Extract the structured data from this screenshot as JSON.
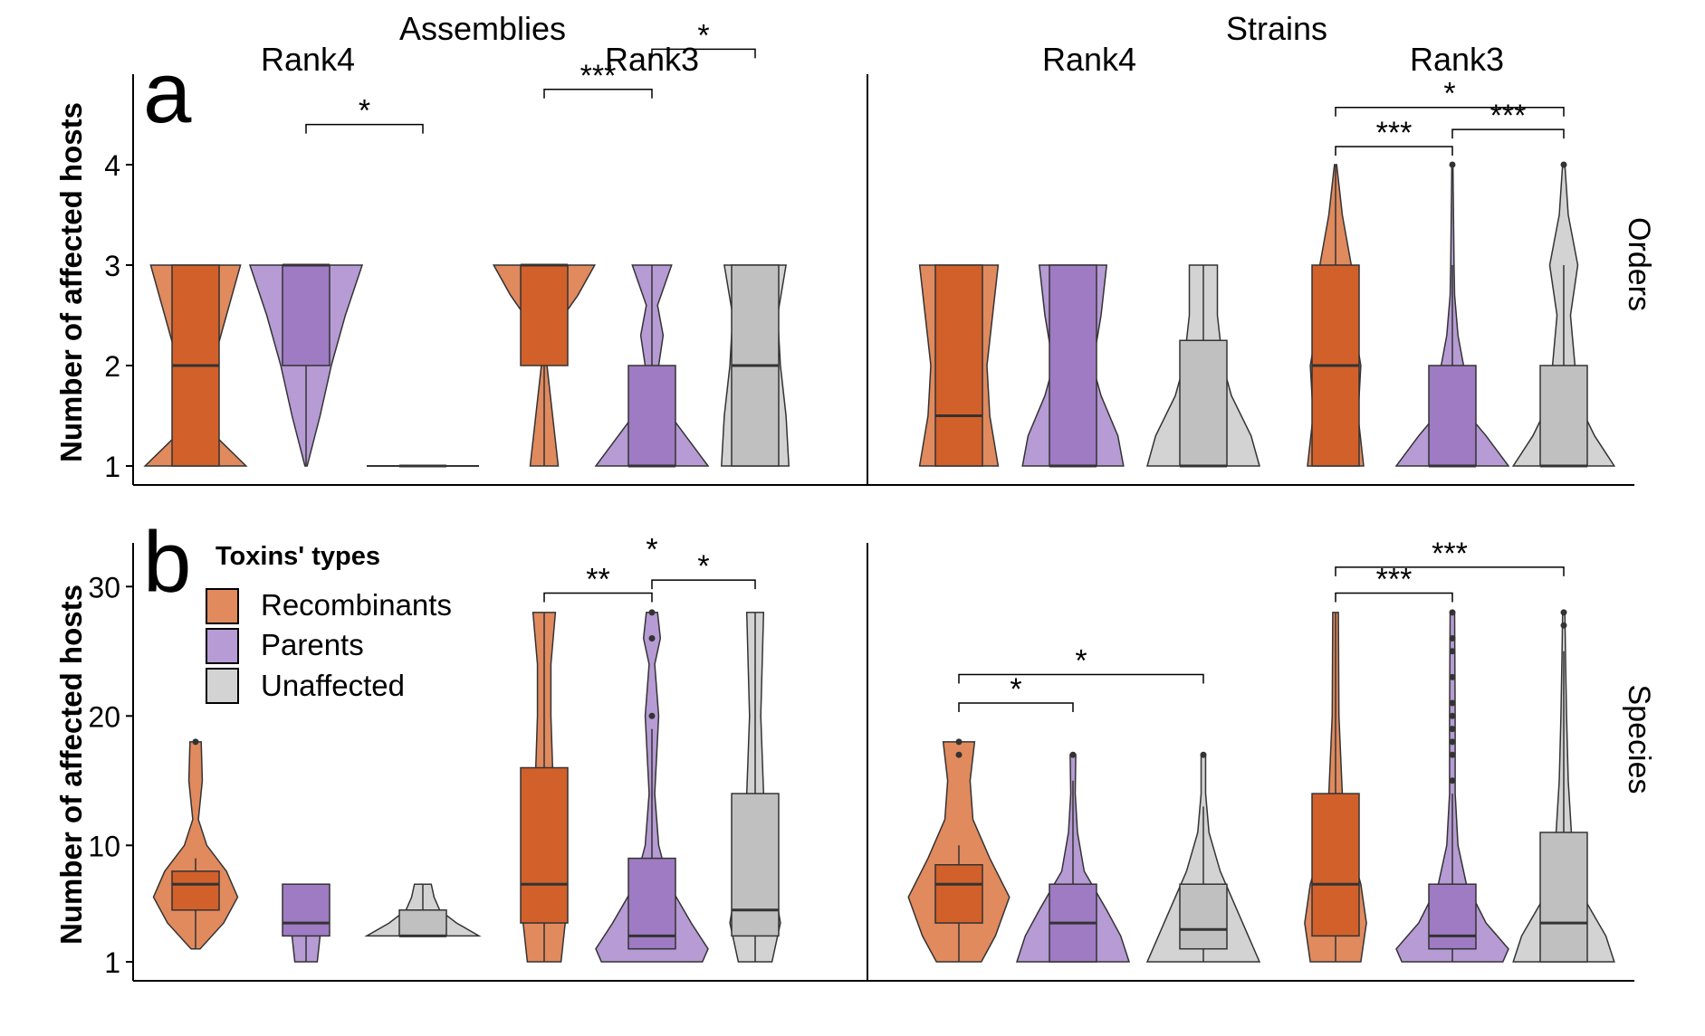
{
  "colors": {
    "recombinants": "#E08A5E",
    "recombinants_box": "#D2602A",
    "parents": "#B69BD4",
    "parents_box": "#9E7BC2",
    "unaffected": "#D3D3D3",
    "unaffected_box": "#C0C0C0"
  },
  "headers": {
    "assemblies": "Assemblies",
    "strains": "Strains",
    "rank4": "Rank4",
    "rank3": "Rank3"
  },
  "row_labels": {
    "orders": "Orders",
    "species": "Species"
  },
  "panel_labels": {
    "a": "a",
    "b": "b"
  },
  "legend": {
    "title": "Toxins' types",
    "items": [
      {
        "name": "Recombinants",
        "color": "#E08A5E"
      },
      {
        "name": "Parents",
        "color": "#B69BD4"
      },
      {
        "name": "Unaffected",
        "color": "#D3D3D3"
      }
    ]
  },
  "chart_data": [
    {
      "type": "violin",
      "panel": "a",
      "ylabel": "Number of affected hosts",
      "facet": "Orders",
      "y_ticks": [
        1,
        2,
        3,
        4
      ],
      "ylim": [
        0.82,
        4.85
      ],
      "groups": [
        {
          "dataset": "Assemblies",
          "rank": "Rank4",
          "series": [
            {
              "name": "Recombinants",
              "min": 1,
              "q1": 1,
              "median": 2,
              "q3": 3,
              "max": 3,
              "outliers": []
            },
            {
              "name": "Parents",
              "min": 1,
              "q1": 2,
              "median": 3,
              "q3": 3,
              "max": 3,
              "outliers": []
            },
            {
              "name": "Unaffected",
              "min": 1,
              "q1": 1,
              "median": 1,
              "q3": 1,
              "max": 1,
              "outliers": []
            }
          ],
          "sig": [
            {
              "pair": [
                1,
                2
              ],
              "label": "*",
              "y": 4.4
            }
          ]
        },
        {
          "dataset": "Assemblies",
          "rank": "Rank3",
          "series": [
            {
              "name": "Recombinants",
              "min": 1,
              "q1": 2,
              "median": 3,
              "q3": 3,
              "max": 3,
              "outliers": []
            },
            {
              "name": "Parents",
              "min": 1,
              "q1": 1,
              "median": 1,
              "q3": 2,
              "max": 3,
              "outliers": []
            },
            {
              "name": "Unaffected",
              "min": 1,
              "q1": 1,
              "median": 2,
              "q3": 3,
              "max": 3,
              "outliers": []
            }
          ],
          "sig": [
            {
              "pair": [
                0,
                1
              ],
              "label": "***",
              "y": 4.75
            },
            {
              "pair": [
                1,
                2
              ],
              "label": "*",
              "y": 5.15
            }
          ]
        },
        {
          "dataset": "Strains",
          "rank": "Rank4",
          "series": [
            {
              "name": "Recombinants",
              "min": 1,
              "q1": 1,
              "median": 1.5,
              "q3": 3,
              "max": 3,
              "outliers": []
            },
            {
              "name": "Parents",
              "min": 1,
              "q1": 1,
              "median": 1,
              "q3": 3,
              "max": 3,
              "outliers": []
            },
            {
              "name": "Unaffected",
              "min": 1,
              "q1": 1,
              "median": 1,
              "q3": 2.25,
              "max": 3,
              "outliers": []
            }
          ],
          "sig": []
        },
        {
          "dataset": "Strains",
          "rank": "Rank3",
          "series": [
            {
              "name": "Recombinants",
              "min": 1,
              "q1": 1,
              "median": 2,
              "q3": 3,
              "max": 4,
              "outliers": []
            },
            {
              "name": "Parents",
              "min": 1,
              "q1": 1,
              "median": 1,
              "q3": 2,
              "max": 3,
              "outliers": [
                4
              ]
            },
            {
              "name": "Unaffected",
              "min": 1,
              "q1": 1,
              "median": 1,
              "q3": 2,
              "max": 3,
              "outliers": [
                4
              ]
            }
          ],
          "sig": [
            {
              "pair": [
                0,
                1
              ],
              "label": "***",
              "y": 4.18
            },
            {
              "pair": [
                1,
                2
              ],
              "label": "***",
              "y": 4.35
            },
            {
              "pair": [
                0,
                2
              ],
              "label": "*",
              "y": 4.57
            }
          ]
        }
      ]
    },
    {
      "type": "violin",
      "panel": "b",
      "ylabel": "Number of affected hosts",
      "facet": "Species",
      "y_ticks": [
        1,
        10,
        20,
        30
      ],
      "ylim": [
        -0.5,
        34
      ],
      "groups": [
        {
          "dataset": "Assemblies",
          "rank": "Rank4",
          "series": [
            {
              "name": "Recombinants",
              "min": 2,
              "q1": 5,
              "median": 7,
              "q3": 8,
              "max": 9,
              "outliers": [
                18
              ]
            },
            {
              "name": "Parents",
              "min": 1,
              "q1": 3,
              "median": 4,
              "q3": 7,
              "max": 7,
              "outliers": []
            },
            {
              "name": "Unaffected",
              "min": 3,
              "q1": 3,
              "median": 3,
              "q3": 5,
              "max": 7,
              "outliers": []
            }
          ],
          "sig": []
        },
        {
          "dataset": "Assemblies",
          "rank": "Rank3",
          "series": [
            {
              "name": "Recombinants",
              "min": 1,
              "q1": 4,
              "median": 7,
              "q3": 16,
              "max": 28,
              "outliers": []
            },
            {
              "name": "Parents",
              "min": 2,
              "q1": 2,
              "median": 3,
              "q3": 9,
              "max": 19,
              "outliers": [
                20,
                26,
                28
              ]
            },
            {
              "name": "Unaffected",
              "min": 1,
              "q1": 3,
              "median": 5,
              "q3": 14,
              "max": 28,
              "outliers": []
            }
          ],
          "sig": [
            {
              "pair": [
                0,
                1
              ],
              "label": "**",
              "y": 29.5
            },
            {
              "pair": [
                1,
                2
              ],
              "label": "*",
              "y": 30.5
            },
            {
              "pair": null,
              "label": "*",
              "y": 33.5
            }
          ]
        },
        {
          "dataset": "Strains",
          "rank": "Rank4",
          "series": [
            {
              "name": "Recombinants",
              "min": 1,
              "q1": 4,
              "median": 7,
              "q3": 8.5,
              "max": 10,
              "outliers": [
                17,
                18
              ]
            },
            {
              "name": "Parents",
              "min": 1,
              "q1": 1,
              "median": 4,
              "q3": 7,
              "max": 15,
              "outliers": [
                17
              ]
            },
            {
              "name": "Unaffected",
              "min": 1,
              "q1": 2,
              "median": 3.5,
              "q3": 7,
              "max": 13,
              "outliers": [
                17
              ]
            }
          ],
          "sig": [
            {
              "pair": [
                0,
                1
              ],
              "label": "*",
              "y": 21
            },
            {
              "pair": [
                0,
                2
              ],
              "label": "*",
              "y": 23.2
            }
          ]
        },
        {
          "dataset": "Strains",
          "rank": "Rank3",
          "series": [
            {
              "name": "Recombinants",
              "min": 1,
              "q1": 3,
              "median": 7,
              "q3": 14,
              "max": 28,
              "outliers": []
            },
            {
              "name": "Parents",
              "min": 1,
              "q1": 2,
              "median": 3,
              "q3": 7,
              "max": 14,
              "outliers": [
                15,
                17,
                18,
                19,
                20,
                21,
                23,
                25,
                26,
                28
              ]
            },
            {
              "name": "Unaffected",
              "min": 1,
              "q1": 1,
              "median": 4,
              "q3": 11,
              "max": 25,
              "outliers": [
                27,
                28
              ]
            }
          ],
          "sig": [
            {
              "pair": [
                0,
                1
              ],
              "label": "***",
              "y": 29.5
            },
            {
              "pair": [
                0,
                2
              ],
              "label": "***",
              "y": 31.5
            }
          ]
        }
      ]
    }
  ]
}
